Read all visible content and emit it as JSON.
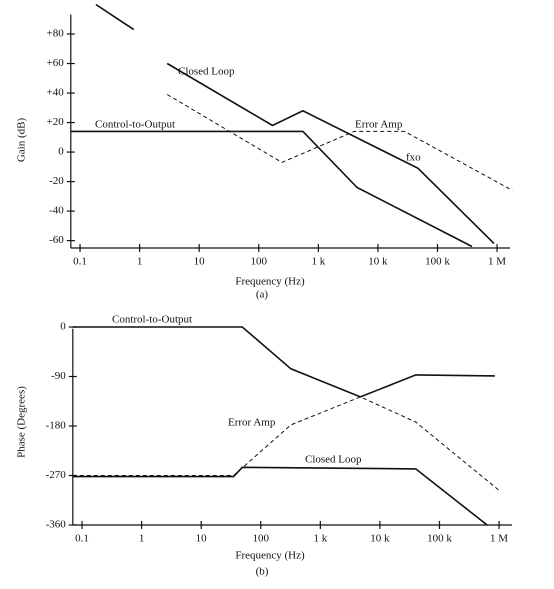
{
  "chart_data": [
    {
      "type": "line",
      "log_x": true,
      "grid": false,
      "color": "#111111",
      "x_label": "Frequency (Hz)",
      "y_label": "Gain (dB)",
      "caption": "(a)",
      "xlim": [
        0.07,
        2000000
      ],
      "ylim": [
        -65,
        100
      ],
      "xticks": [
        {
          "value": 0.1,
          "label": "0.1"
        },
        {
          "value": 1,
          "label": "1"
        },
        {
          "value": 10,
          "label": "10"
        },
        {
          "value": 100,
          "label": "100"
        },
        {
          "value": 1000,
          "label": "1 k"
        },
        {
          "value": 10000,
          "label": "10 k"
        },
        {
          "value": 100000,
          "label": "100 k"
        },
        {
          "value": 1000000,
          "label": "1 M"
        }
      ],
      "yticks": [
        {
          "value": 80,
          "label": "+80"
        },
        {
          "value": 60,
          "label": "+60"
        },
        {
          "value": 40,
          "label": "+40"
        },
        {
          "value": 20,
          "label": "+20"
        },
        0,
        -20,
        -40,
        -60
      ],
      "annotations": [
        "fxo"
      ],
      "series": [
        {
          "name": "Control-to-Output",
          "color": "#111111",
          "dashed": false,
          "x": [
            0.07,
            550,
            4470,
            380000
          ],
          "values": [
            14,
            14,
            -24,
            -64
          ]
        },
        {
          "name": "Error Amp",
          "color": "#111111",
          "dashed": true,
          "x": [
            2.9,
            245,
            4000,
            28000,
            1800000
          ],
          "values": [
            39,
            -7,
            14,
            14,
            -26
          ]
        },
        {
          "name": "Closed Loop",
          "color": "#111111",
          "dashed": false,
          "x": [
            0.185,
            0.8,
            1.5,
            2.9,
            170,
            550,
            47000,
            890000
          ],
          "values": [
            100,
            83,
            null,
            60,
            18,
            28,
            -11,
            -62
          ]
        }
      ]
    },
    {
      "type": "line",
      "log_x": true,
      "grid": false,
      "color": "#111111",
      "x_label": "Frequency (Hz)",
      "y_label": "Phase (Degrees)",
      "caption": "(b)",
      "xlim": [
        0.07,
        2000000
      ],
      "ylim": [
        -360,
        15
      ],
      "xticks": [
        {
          "value": 0.1,
          "label": "0.1"
        },
        {
          "value": 1,
          "label": "1"
        },
        {
          "value": 10,
          "label": "10"
        },
        {
          "value": 100,
          "label": "100"
        },
        {
          "value": 1000,
          "label": "1 k"
        },
        {
          "value": 10000,
          "label": "10 k"
        },
        {
          "value": 100000,
          "label": "100 k"
        },
        {
          "value": 1000000,
          "label": "1 M"
        }
      ],
      "yticks": [
        0,
        -90,
        -180,
        -270,
        -360
      ],
      "series": [
        {
          "name": "Control-to-Output",
          "color": "#111111",
          "dashed": false,
          "x": [
            0.07,
            49,
            320,
            4700,
            40000,
            850000
          ],
          "values": [
            0,
            0,
            -76,
            -127,
            -87,
            -89
          ]
        },
        {
          "name": "Error Amp",
          "color": "#111111",
          "dashed": true,
          "x": [
            0.07,
            35,
            320,
            4700,
            40000,
            1000000
          ],
          "values": [
            -270,
            -270,
            -178,
            -127,
            -173,
            -297
          ]
        },
        {
          "name": "Closed Loop",
          "color": "#111111",
          "dashed": false,
          "x": [
            0.07,
            35,
            49,
            40000,
            630000
          ],
          "values": [
            -272,
            -272,
            -255,
            -258,
            -360
          ]
        }
      ]
    }
  ]
}
